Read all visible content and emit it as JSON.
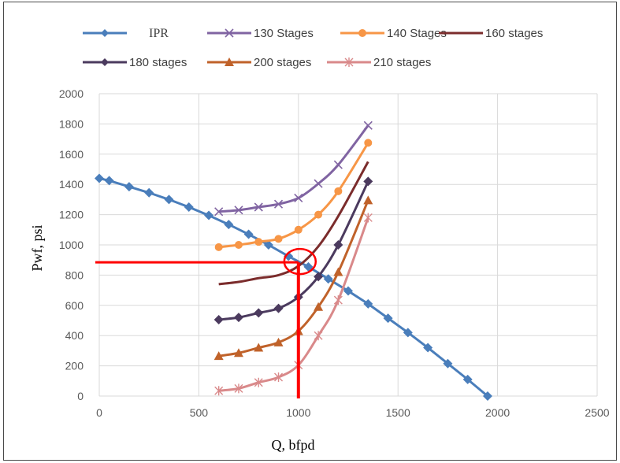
{
  "chart_data": {
    "type": "line",
    "title": "",
    "xlabel": "Q, bfpd",
    "ylabel": "Pwf, psi",
    "xlim": [
      0,
      2500
    ],
    "ylim": [
      0,
      2000
    ],
    "xticks": [
      0,
      500,
      1000,
      1500,
      2000,
      2500
    ],
    "yticks": [
      0,
      200,
      400,
      600,
      800,
      1000,
      1200,
      1400,
      1600,
      1800,
      2000
    ],
    "grid": true,
    "legend_position": "top",
    "series": [
      {
        "name": "IPR",
        "color": "#4a7ebb",
        "marker": "diamond",
        "x": [
          0,
          50,
          150,
          250,
          350,
          450,
          550,
          650,
          750,
          850,
          950,
          1050,
          1150,
          1250,
          1350,
          1450,
          1550,
          1650,
          1750,
          1850,
          1950
        ],
        "y": [
          1440,
          1425,
          1385,
          1345,
          1300,
          1250,
          1195,
          1135,
          1070,
          1000,
          925,
          855,
          775,
          695,
          610,
          515,
          420,
          320,
          215,
          110,
          0
        ]
      },
      {
        "name": "130 Stages",
        "color": "#8064a2",
        "marker": "x",
        "x": [
          600,
          700,
          800,
          900,
          1000,
          1100,
          1200,
          1350
        ],
        "y": [
          1220,
          1230,
          1250,
          1270,
          1310,
          1405,
          1530,
          1790
        ]
      },
      {
        "name": "140 Stages",
        "color": "#f79646",
        "marker": "circle",
        "x": [
          600,
          700,
          800,
          900,
          1000,
          1100,
          1200,
          1350
        ],
        "y": [
          985,
          1000,
          1020,
          1040,
          1100,
          1200,
          1355,
          1675
        ]
      },
      {
        "name": "160 stages",
        "color": "#7b2c2c",
        "marker": "none",
        "x": [
          600,
          700,
          800,
          900,
          1000,
          1100,
          1200,
          1350
        ],
        "y": [
          740,
          755,
          780,
          800,
          860,
          990,
          1190,
          1550
        ]
      },
      {
        "name": "180 stages",
        "color": "#4b3a5e",
        "marker": "diamond",
        "x": [
          600,
          700,
          800,
          900,
          1000,
          1100,
          1200,
          1350
        ],
        "y": [
          505,
          520,
          550,
          580,
          655,
          790,
          1000,
          1420
        ]
      },
      {
        "name": "200 stages",
        "color": "#c0622a",
        "marker": "triangle",
        "x": [
          600,
          700,
          800,
          900,
          1000,
          1100,
          1200,
          1350
        ],
        "y": [
          265,
          285,
          320,
          355,
          430,
          590,
          820,
          1295
        ]
      },
      {
        "name": "210 stages",
        "color": "#d9898a",
        "marker": "star",
        "x": [
          600,
          700,
          800,
          900,
          1000,
          1100,
          1200,
          1350
        ],
        "y": [
          35,
          50,
          90,
          125,
          205,
          400,
          635,
          1180
        ]
      }
    ],
    "annotations": {
      "operating_point": {
        "x": 1000,
        "y": 885
      },
      "highlight_color": "#ff0000"
    }
  }
}
